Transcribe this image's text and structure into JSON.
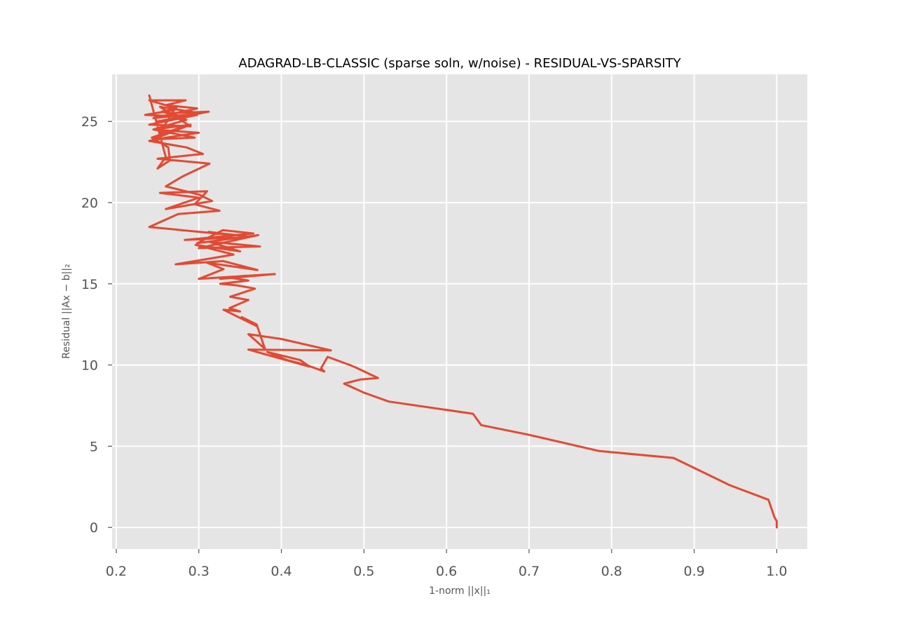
{
  "colors": {
    "plot_background": "#e5e5e5",
    "grid": "#ffffff",
    "series": "#e24a33"
  },
  "chart_data": {
    "type": "line",
    "title": "ADAGRAD-LB-CLASSIC (sparse soln, w/noise) - RESIDUAL-VS-SPARSITY",
    "xlabel": "1-norm ||x||₁",
    "ylabel": "Residual ||Ax − b||₂",
    "xlim": [
      0.195,
      1.037
    ],
    "ylim": [
      -1.33,
      27.9
    ],
    "xticks": [
      0.2,
      0.3,
      0.4,
      0.5,
      0.6,
      0.7,
      0.8,
      0.9,
      1.0
    ],
    "xtick_labels": [
      "0.2",
      "0.3",
      "0.4",
      "0.5",
      "0.6",
      "0.7",
      "0.8",
      "0.9",
      "1.0"
    ],
    "yticks": [
      0,
      5,
      10,
      15,
      20,
      25
    ],
    "ytick_labels": [
      "0",
      "5",
      "10",
      "15",
      "20",
      "25"
    ],
    "grid": true,
    "series": [
      {
        "x": [
          1.0,
          1.0,
          0.997,
          0.99,
          0.943,
          0.875,
          0.785,
          0.7,
          0.642,
          0.632,
          0.53,
          0.5,
          0.476,
          0.495,
          0.517,
          0.49,
          0.483,
          0.456,
          0.448,
          0.452,
          0.43,
          0.407,
          0.383,
          0.423,
          0.434,
          0.36,
          0.46,
          0.4,
          0.36,
          0.38,
          0.37,
          0.352,
          0.37,
          0.33,
          0.35,
          0.337,
          0.36,
          0.338,
          0.368,
          0.347,
          0.326,
          0.36,
          0.335,
          0.357,
          0.326,
          0.392,
          0.3,
          0.33,
          0.31,
          0.371,
          0.33,
          0.272,
          0.342,
          0.296,
          0.35,
          0.312,
          0.374,
          0.3,
          0.372,
          0.298,
          0.329,
          0.366,
          0.283,
          0.361,
          0.312,
          0.341,
          0.24,
          0.275,
          0.325,
          0.295,
          0.31,
          0.253,
          0.3,
          0.26,
          0.316,
          0.3,
          0.26,
          0.28,
          0.313,
          0.25,
          0.305,
          0.285,
          0.24,
          0.26,
          0.3,
          0.245,
          0.29,
          0.245,
          0.295,
          0.245,
          0.285,
          0.262,
          0.312,
          0.25,
          0.298,
          0.24,
          0.29,
          0.253,
          0.302,
          0.245,
          0.298,
          0.26,
          0.284,
          0.24,
          0.273,
          0.255,
          0.28,
          0.235,
          0.27,
          0.253,
          0.26,
          0.282,
          0.243,
          0.263,
          0.265,
          0.25,
          0.26,
          0.24
        ],
        "y": [
          0.0,
          0.38,
          0.65,
          1.7,
          2.6,
          4.28,
          4.7,
          5.7,
          6.3,
          7.0,
          7.75,
          8.3,
          8.85,
          9.1,
          9.2,
          9.85,
          10.0,
          10.5,
          9.8,
          9.6,
          10.0,
          10.3,
          10.8,
          10.3,
          9.9,
          10.95,
          10.9,
          11.6,
          11.9,
          11.0,
          12.5,
          12.95,
          12.4,
          13.4,
          13.3,
          13.5,
          14.0,
          14.2,
          14.7,
          14.9,
          15.0,
          15.2,
          15.4,
          15.5,
          15.3,
          15.6,
          15.3,
          15.9,
          16.3,
          15.85,
          16.4,
          16.2,
          16.8,
          17.4,
          17.0,
          17.6,
          17.3,
          17.2,
          18.0,
          17.5,
          18.3,
          18.1,
          17.7,
          17.9,
          18.2,
          18.0,
          18.5,
          19.3,
          19.5,
          19.9,
          20.7,
          20.6,
          20.3,
          19.6,
          20.1,
          20.5,
          21.0,
          21.6,
          22.4,
          22.7,
          23.0,
          23.4,
          23.8,
          24.0,
          24.3,
          24.5,
          24.8,
          23.9,
          24.0,
          24.5,
          25.1,
          25.5,
          25.6,
          25.0,
          25.4,
          24.8,
          24.7,
          25.9,
          25.5,
          25.2,
          25.8,
          26.0,
          26.3,
          26.3,
          25.8,
          25.6,
          25.3,
          25.4,
          25.7,
          24.3,
          24.2,
          24.7,
          24.0,
          23.4,
          22.6,
          22.1,
          22.8,
          26.6
        ]
      }
    ]
  }
}
